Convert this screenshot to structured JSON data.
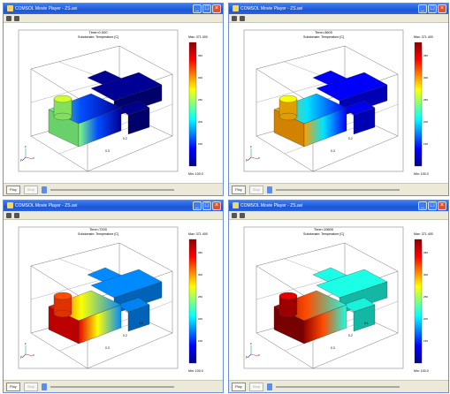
{
  "colors": {
    "accent": "#2a63df",
    "low": "#00008f",
    "high": "#8f0000"
  },
  "windows": [
    {
      "title": "COMSOL Movie Player - ZS.avi",
      "time": "Time=0.000",
      "subtitle": "Subdomain: Temperature [C]",
      "max_label": "Max: 371.400",
      "min_label": "Min: 100.0",
      "colorbar_ticks": [
        "350",
        "300",
        "250",
        "200",
        "150"
      ],
      "axis_ticks": [
        "0.1",
        "0.2",
        "0.3"
      ],
      "axis_labels": [
        "x",
        "y",
        "z"
      ],
      "play_label": "Play",
      "stop_label": "Stop",
      "temps": {
        "cyl_top": 0.58,
        "cyl_side": 0.52,
        "base_left": 0.5,
        "body_near": 0.2,
        "cross": 0.02
      }
    },
    {
      "title": "COMSOL Movie Player - ZS.avi",
      "time": "Time=3600",
      "subtitle": "Subdomain: Temperature [C]",
      "max_label": "Max: 371.400",
      "min_label": "Min: 100.0",
      "colorbar_ticks": [
        "350",
        "300",
        "250",
        "200",
        "150"
      ],
      "axis_ticks": [
        "0.1",
        "0.2",
        "0.3"
      ],
      "axis_labels": [
        "x",
        "y",
        "z"
      ],
      "play_label": "Play",
      "stop_label": "Stop",
      "temps": {
        "cyl_top": 0.62,
        "cyl_side": 0.7,
        "base_left": 0.72,
        "body_near": 0.35,
        "cross": 0.12
      }
    },
    {
      "title": "COMSOL Movie Player - ZS.avi",
      "time": "Time=7200",
      "subtitle": "Subdomain: Temperature [C]",
      "max_label": "Max: 371.400",
      "min_label": "Min: 100.0",
      "colorbar_ticks": [
        "350",
        "300",
        "250",
        "200",
        "150"
      ],
      "axis_ticks": [
        "0.1",
        "0.2",
        "0.3"
      ],
      "axis_labels": [
        "x",
        "y",
        "z"
      ],
      "play_label": "Play",
      "stop_label": "Stop",
      "temps": {
        "cyl_top": 0.8,
        "cyl_side": 0.82,
        "base_left": 0.9,
        "body_near": 0.62,
        "cross": 0.26
      }
    },
    {
      "title": "COMSOL Movie Player - ZS.avi",
      "time": "Time=10800",
      "subtitle": "Subdomain: Temperature [C]",
      "max_label": "Max: 371.400",
      "min_label": "Min: 100.0",
      "colorbar_ticks": [
        "350",
        "300",
        "250",
        "200",
        "150"
      ],
      "axis_ticks": [
        "0.1",
        "0.2",
        "0.3"
      ],
      "axis_labels": [
        "x",
        "y",
        "z"
      ],
      "play_label": "Play",
      "stop_label": "Stop",
      "temps": {
        "cyl_top": 0.9,
        "cyl_side": 0.95,
        "base_left": 0.98,
        "body_near": 0.8,
        "cross": 0.4
      }
    }
  ]
}
